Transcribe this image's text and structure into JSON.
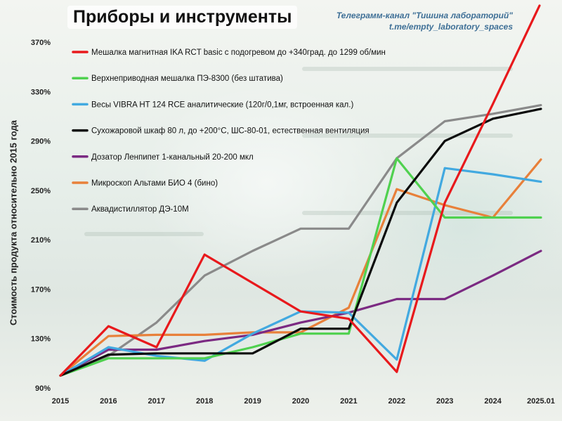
{
  "header": {
    "title": "Приборы и инструменты",
    "credit_line1": "Телеграмм-канал \"Тишина лабораторий\"",
    "credit_line2": "t.me/empty_laboratory_spaces"
  },
  "chart_data": {
    "type": "line",
    "ylabel": "Стоимость продукта относительно 2015 года",
    "x": [
      "2015",
      "2016",
      "2017",
      "2018",
      "2019",
      "2020",
      "2021",
      "2022",
      "2023",
      "2024",
      "2025.01"
    ],
    "yticks": [
      "90%",
      "130%",
      "170%",
      "210%",
      "250%",
      "290%",
      "330%",
      "370%"
    ],
    "ylim": [
      90,
      370
    ],
    "grid": false,
    "legend_position": "top-left",
    "series": [
      {
        "name": "Мешалка магнитная IKA RCT basic с подогревом до +340град. до 1299 об/мин",
        "color": "#e8191c",
        "values": [
          100,
          140,
          123,
          198,
          175,
          152,
          146,
          103,
          240,
          320,
          402
        ]
      },
      {
        "name": "Верхнеприводная мешалка ПЭ-8300 (без штатива)",
        "color": "#4fd14f",
        "values": [
          100,
          114,
          114,
          114,
          123,
          134,
          134,
          276,
          228,
          228,
          228
        ]
      },
      {
        "name": "Весы VIBRA HT 124 RCE  аналитические (120г/0,1мг, встроенная кал.)",
        "color": "#42a9e0",
        "values": [
          100,
          123,
          116,
          112,
          134,
          152,
          151,
          113,
          268,
          263,
          257
        ]
      },
      {
        "name": "Сухожаровой шкаф 80 л, до +200°С, ШС-80-01, естественная вентиляция",
        "color": "#0b0b0b",
        "values": [
          100,
          117,
          118,
          118,
          118,
          138,
          138,
          240,
          290,
          308,
          316
        ]
      },
      {
        "name": "Дозатор Ленпипет 1-канальный 20-200 мкл",
        "color": "#7b2a82",
        "values": [
          100,
          121,
          121,
          128,
          133,
          143,
          151,
          162,
          162,
          181,
          201
        ]
      },
      {
        "name": "Микроскоп Альтами БИО 4 (бино)",
        "color": "#e8803a",
        "values": [
          100,
          132,
          133,
          133,
          135,
          135,
          155,
          251,
          238,
          228,
          275
        ]
      },
      {
        "name": "Аквадистиллятор ДЭ-10М",
        "color": "#8a8a8a",
        "values": [
          100,
          116,
          143,
          181,
          201,
          219,
          219,
          276,
          306,
          312,
          319
        ]
      }
    ]
  }
}
